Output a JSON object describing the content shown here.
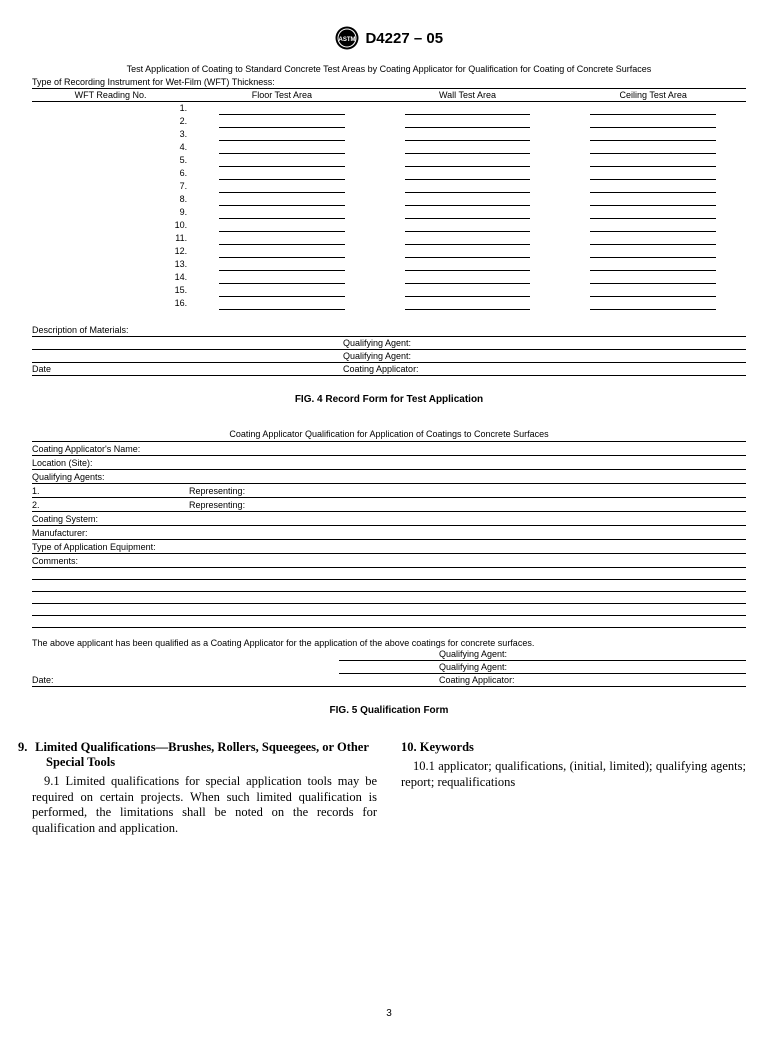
{
  "document_number": "D4227 – 05",
  "fig4": {
    "top_caption": "Test Application of Coating to Standard Concrete Test Areas by Coating Applicator for Qualification for Coating of Concrete Surfaces",
    "sub_caption": "Type of Recording Instrument for Wet-Film (WFT) Thickness:",
    "col1": "WFT Reading No.",
    "col2": "Floor Test Area",
    "col3": "Wall Test Area",
    "col4": "Ceiling Test Area",
    "rows": [
      "1.",
      "2.",
      "3.",
      "4.",
      "5.",
      "6.",
      "7.",
      "8.",
      "9.",
      "10.",
      "11.",
      "12.",
      "13.",
      "14.",
      "15.",
      "16."
    ],
    "desc_label": "Description of Materials:",
    "qa1": "Qualifying Agent:",
    "qa2": "Qualifying Agent:",
    "ca": "Coating Applicator:",
    "date": "Date",
    "title": "FIG. 4  Record Form for Test Application"
  },
  "fig5": {
    "caption": "Coating Applicator Qualification for Application of Coatings to Concrete Surfaces",
    "lines": {
      "name": "Coating Applicator's Name:",
      "location": "Location (Site):",
      "qa_label": "Qualifying Agents:",
      "r1": "1.",
      "r1rep": "Representing:",
      "r2": "2.",
      "r2rep": "Representing:",
      "coating_system": "Coating System:",
      "manufacturer": "Manufacturer:",
      "equipment": "Type of Application Equipment:",
      "comments": "Comments:"
    },
    "statement": "The above applicant has been qualified as a Coating Applicator for the application of the above coatings for concrete surfaces.",
    "qa1": "Qualifying Agent:",
    "qa2": "Qualifying Agent:",
    "ca": "Coating Applicator:",
    "date": "Date:",
    "title": "FIG. 5  Qualification Form"
  },
  "section9": {
    "num": "9.",
    "title": "Limited Qualifications—Brushes, Rollers, Squeegees, or Other Special Tools",
    "para_num": "9.1",
    "para_text": " Limited qualifications for special application tools may be required on certain projects. When such limited qualification is performed, the limitations shall be noted on the records for qualification and application."
  },
  "section10": {
    "num": "10.",
    "title": "Keywords",
    "para_num": "10.1",
    "para_text": " applicator; qualifications, (initial, limited); qualifying agents; report; requalifications"
  },
  "page_number": "3"
}
